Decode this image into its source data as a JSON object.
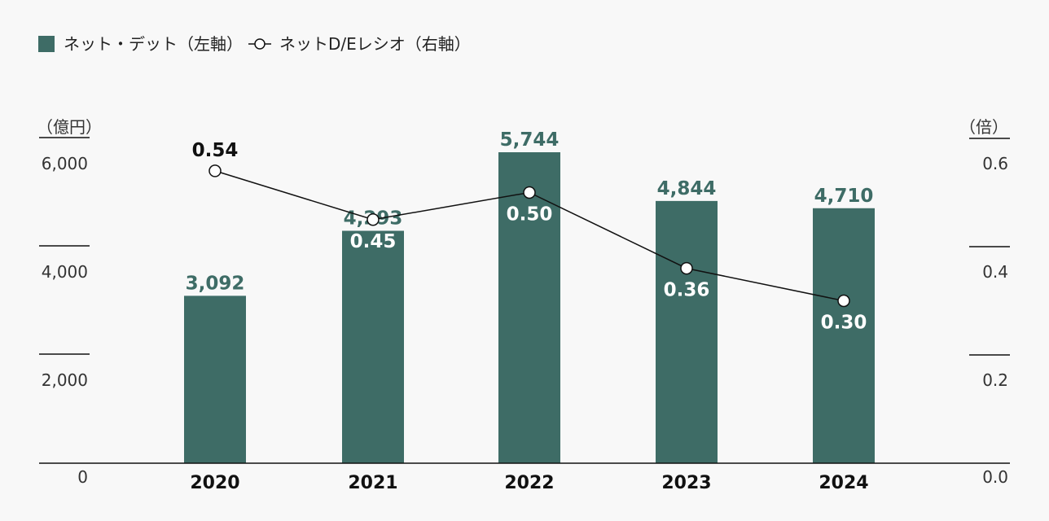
{
  "legend": {
    "bar_label": "ネット・デット（左軸）",
    "line_label": "ネットD/Eレシオ（右軸）"
  },
  "units": {
    "left": "（億円）",
    "right": "（倍）"
  },
  "colors": {
    "bar": "#3e6c66",
    "line": "#111111",
    "point_fill": "#ffffff"
  },
  "chart_data": {
    "type": "bar",
    "categories": [
      "2020",
      "2021",
      "2022",
      "2023",
      "2024"
    ],
    "series": [
      {
        "name": "ネット・デット（左軸）",
        "type": "bar",
        "axis": "left",
        "values": [
          3092,
          4293,
          5744,
          4844,
          4710
        ],
        "labels": [
          "3,092",
          "4,293",
          "5,744",
          "4,844",
          "4,710"
        ]
      },
      {
        "name": "ネットD/Eレシオ（右軸）",
        "type": "line",
        "axis": "right",
        "values": [
          0.54,
          0.45,
          0.5,
          0.36,
          0.3
        ],
        "labels": [
          "0.54",
          "0.45",
          "0.50",
          "0.36",
          "0.30"
        ]
      }
    ],
    "left_axis": {
      "unit": "（億円）",
      "ylim": [
        0,
        6000
      ],
      "ticks": [
        "0",
        "2,000",
        "4,000",
        "6,000"
      ],
      "tick_values": [
        0,
        2000,
        4000,
        6000
      ]
    },
    "right_axis": {
      "unit": "（倍）",
      "ylim": [
        0,
        0.6
      ],
      "ticks": [
        "0.0",
        "0.2",
        "0.4",
        "0.6"
      ],
      "tick_values": [
        0,
        0.2,
        0.4,
        0.6
      ]
    },
    "legend_position": "top-left",
    "grid": false
  }
}
